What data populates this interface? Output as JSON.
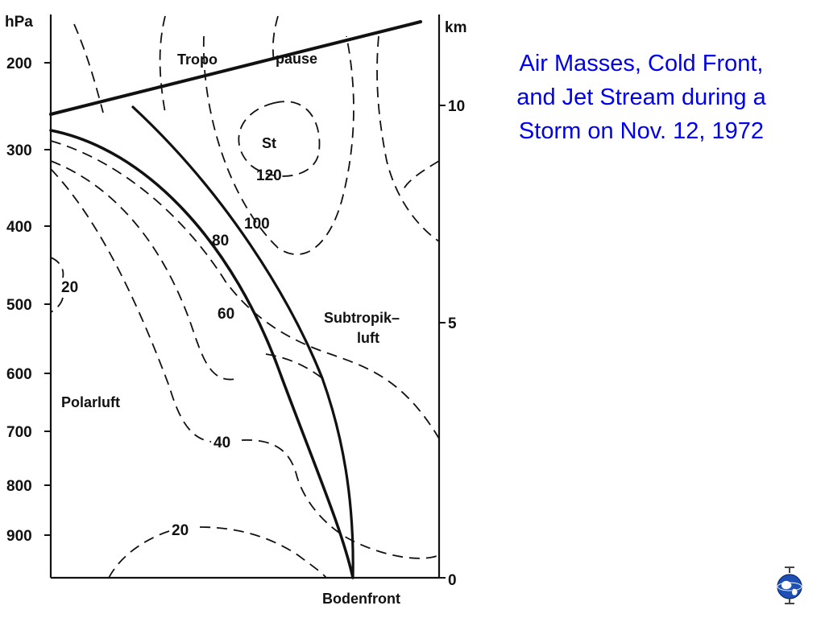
{
  "title_lines": [
    "Air Masses, Cold Front,",
    "and Jet Stream during a",
    "Storm on Nov. 12, 1972"
  ],
  "diagram": {
    "left_axis_unit": "hPa",
    "right_axis_unit": "km",
    "pressure_ticks": [
      "200",
      "300",
      "400",
      "500",
      "600",
      "700",
      "800",
      "900"
    ],
    "height_ticks": [
      "10",
      "5",
      "0"
    ],
    "labels": {
      "tropo": "Tropo",
      "pause": "pause",
      "stratosphere": "St",
      "subtropic_line1": "Subtropik–",
      "subtropic_line2": "luft",
      "polar_air": "Polarluft",
      "surface_front": "Bodenfront"
    },
    "isotachs": [
      "120",
      "100",
      "80",
      "60",
      "40",
      "20",
      "20"
    ]
  },
  "colors": {
    "title": "#0000ee",
    "lines": "#111111",
    "background": "#ffffff",
    "logo_globe": "#1d4fb4"
  },
  "logo": {
    "icon": "globe-logo-icon"
  }
}
